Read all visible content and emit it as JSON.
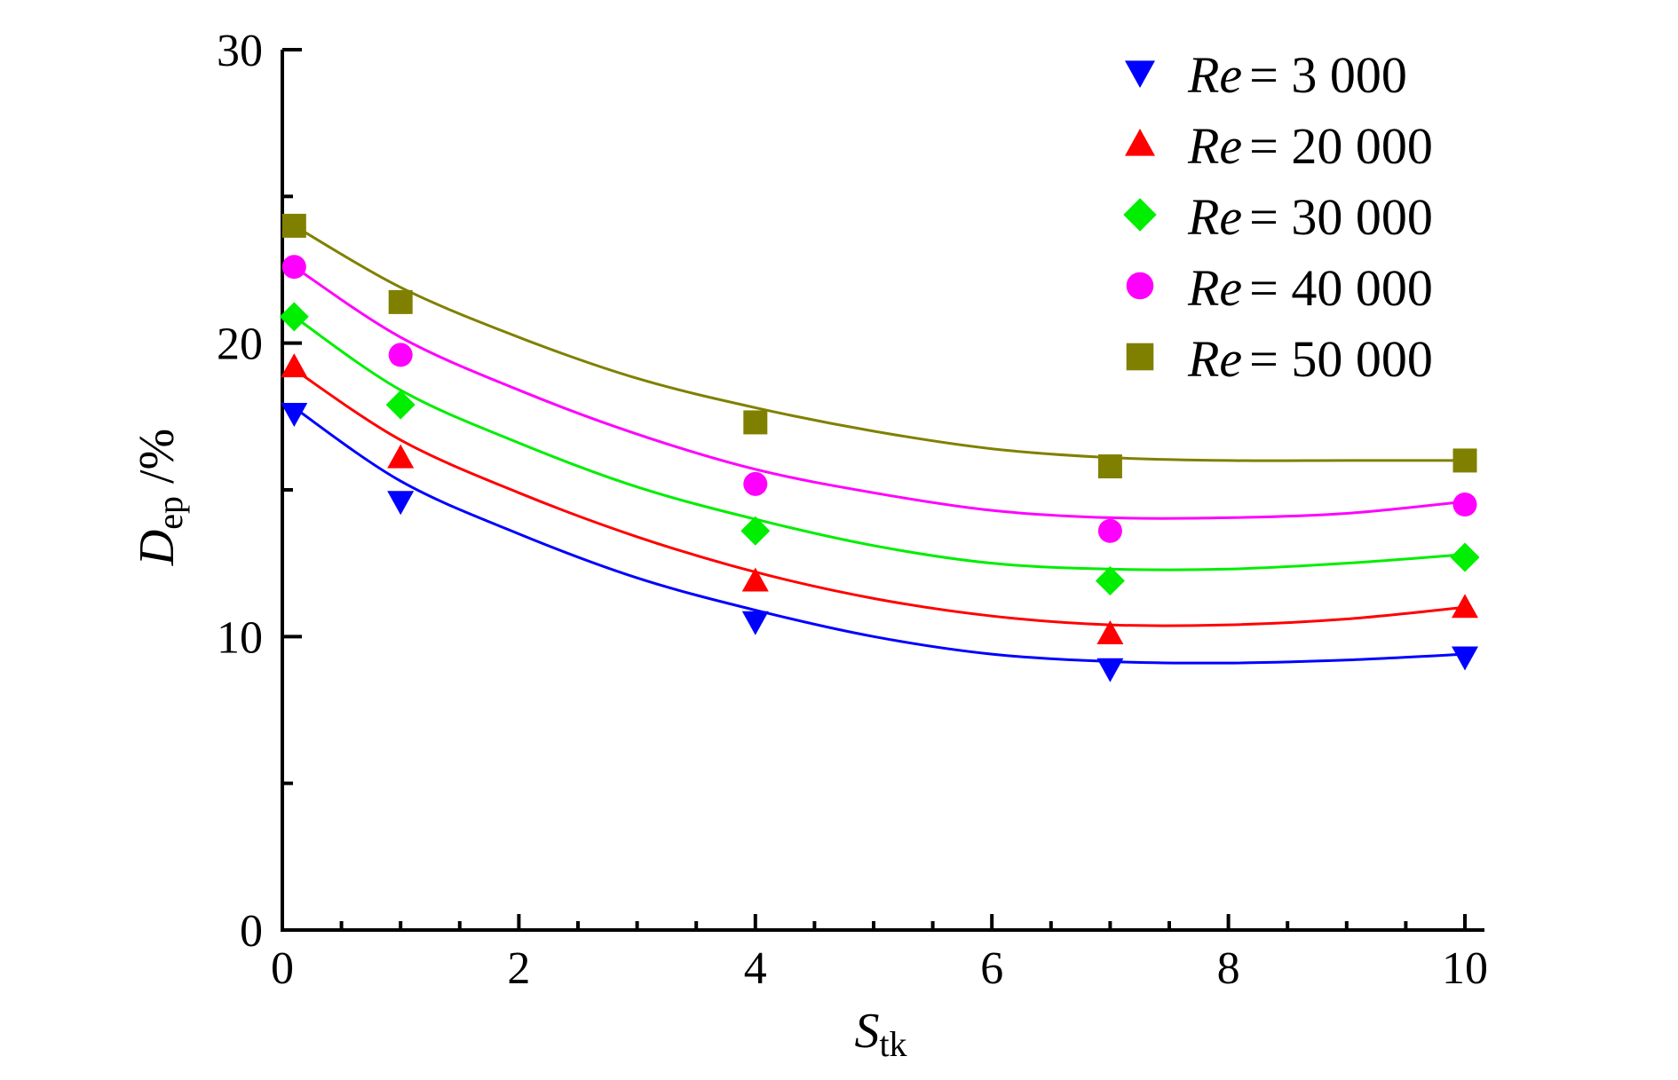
{
  "chart_data": {
    "type": "line",
    "xlabel": {
      "main": "S",
      "sub": "tk"
    },
    "ylabel": {
      "main": "D",
      "sub": "ep",
      "unit": " /%"
    },
    "xlim": [
      0,
      10
    ],
    "ylim": [
      0,
      30
    ],
    "x_ticks": [
      "0",
      "2",
      "4",
      "6",
      "8",
      "10"
    ],
    "y_ticks": [
      "0",
      "10",
      "20",
      "30"
    ],
    "legend_position": "top-right",
    "series": [
      {
        "legend_prefix": "Re",
        "legend_value": "= 3 000",
        "color": "#0000ff",
        "marker": "triangle-down",
        "x": [
          0.1,
          1,
          4,
          7,
          10
        ],
        "y": [
          17.6,
          14.6,
          10.5,
          8.9,
          9.3
        ],
        "fit": [
          [
            0.1,
            17.8
          ],
          [
            1,
            15.3
          ],
          [
            2,
            13.5
          ],
          [
            3,
            12.0
          ],
          [
            4,
            10.9
          ],
          [
            5,
            10.0
          ],
          [
            6,
            9.4
          ],
          [
            7,
            9.15
          ],
          [
            8,
            9.1
          ],
          [
            9,
            9.2
          ],
          [
            10,
            9.4
          ]
        ]
      },
      {
        "legend_prefix": "Re",
        "legend_value": "= 20 000",
        "color": "#ff0000",
        "marker": "triangle-up",
        "x": [
          0.1,
          1,
          4,
          7,
          10
        ],
        "y": [
          19.2,
          16.1,
          11.9,
          10.1,
          11.0
        ],
        "fit": [
          [
            0.1,
            19.1
          ],
          [
            1,
            16.7
          ],
          [
            2,
            14.9
          ],
          [
            3,
            13.4
          ],
          [
            4,
            12.2
          ],
          [
            5,
            11.3
          ],
          [
            6,
            10.7
          ],
          [
            7,
            10.4
          ],
          [
            8,
            10.4
          ],
          [
            9,
            10.6
          ],
          [
            10,
            11.0
          ]
        ]
      },
      {
        "legend_prefix": "Re",
        "legend_value": "= 30 000",
        "color": "#00ee00",
        "marker": "diamond",
        "x": [
          0.1,
          1,
          4,
          7,
          10
        ],
        "y": [
          20.9,
          17.9,
          13.6,
          11.9,
          12.7
        ],
        "fit": [
          [
            0.1,
            20.9
          ],
          [
            1,
            18.4
          ],
          [
            2,
            16.6
          ],
          [
            3,
            15.1
          ],
          [
            4,
            14.0
          ],
          [
            5,
            13.1
          ],
          [
            6,
            12.5
          ],
          [
            7,
            12.3
          ],
          [
            8,
            12.3
          ],
          [
            9,
            12.5
          ],
          [
            10,
            12.8
          ]
        ]
      },
      {
        "legend_prefix": "Re",
        "legend_value": "= 40 000",
        "color": "#ff00ff",
        "marker": "circle",
        "x": [
          0.1,
          1,
          4,
          7,
          10
        ],
        "y": [
          22.6,
          19.6,
          15.2,
          13.6,
          14.5
        ],
        "fit": [
          [
            0.1,
            22.6
          ],
          [
            1,
            20.2
          ],
          [
            2,
            18.4
          ],
          [
            3,
            16.9
          ],
          [
            4,
            15.7
          ],
          [
            5,
            14.9
          ],
          [
            6,
            14.3
          ],
          [
            7,
            14.05
          ],
          [
            8,
            14.05
          ],
          [
            9,
            14.2
          ],
          [
            10,
            14.6
          ]
        ]
      },
      {
        "legend_prefix": "Re",
        "legend_value": "= 50 000",
        "color": "#808000",
        "marker": "square",
        "x": [
          0.1,
          1,
          4,
          7,
          10
        ],
        "y": [
          24.0,
          21.4,
          17.3,
          15.8,
          16.0
        ],
        "fit": [
          [
            0.1,
            24.0
          ],
          [
            1,
            21.9
          ],
          [
            2,
            20.2
          ],
          [
            3,
            18.8
          ],
          [
            4,
            17.8
          ],
          [
            5,
            17.0
          ],
          [
            6,
            16.4
          ],
          [
            7,
            16.1
          ],
          [
            8,
            16.0
          ],
          [
            9,
            16.0
          ],
          [
            10,
            16.0
          ]
        ]
      }
    ]
  }
}
